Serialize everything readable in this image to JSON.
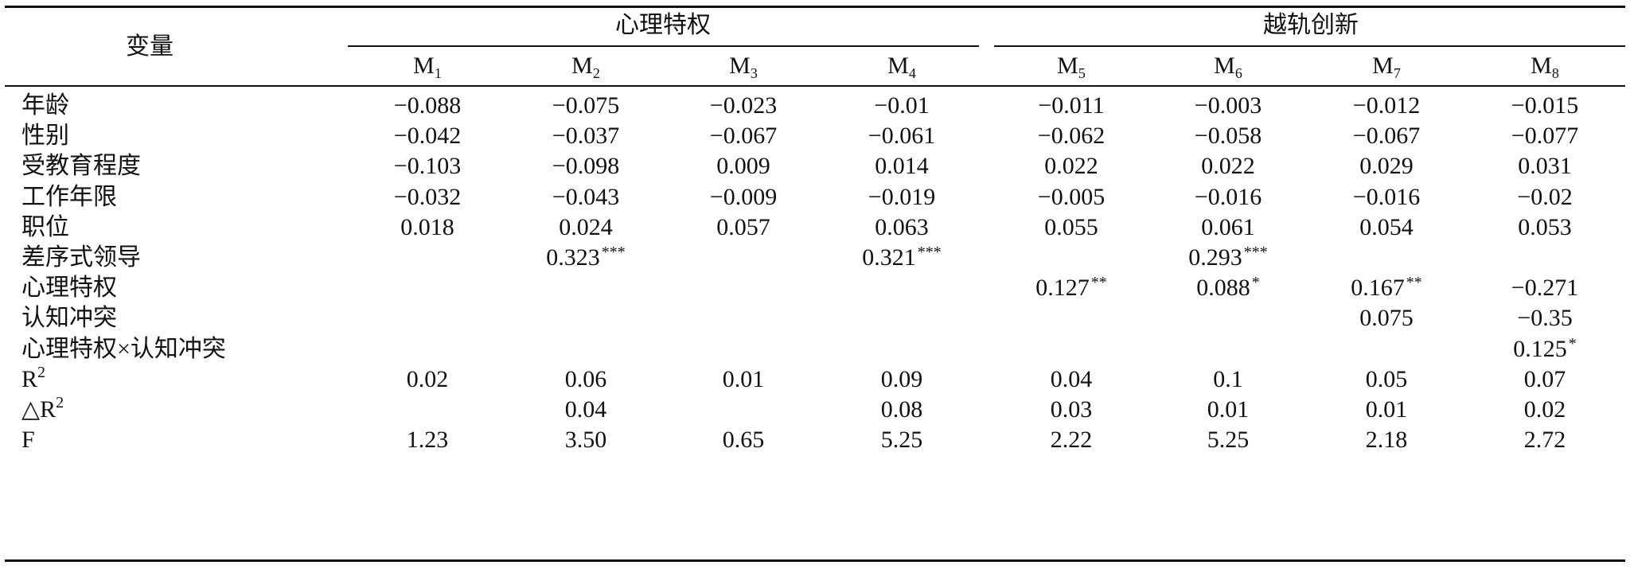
{
  "table": {
    "var_header": "变量",
    "groups": [
      "心理特权",
      "越轨创新"
    ],
    "models": [
      {
        "base": "M",
        "sub": "1"
      },
      {
        "base": "M",
        "sub": "2"
      },
      {
        "base": "M",
        "sub": "3"
      },
      {
        "base": "M",
        "sub": "4"
      },
      {
        "base": "M",
        "sub": "5"
      },
      {
        "base": "M",
        "sub": "6"
      },
      {
        "base": "M",
        "sub": "7"
      },
      {
        "base": "M",
        "sub": "8"
      }
    ],
    "rows": [
      {
        "label": "年龄",
        "label_sup": "",
        "cells": [
          {
            "v": "−0.088",
            "s": ""
          },
          {
            "v": "−0.075",
            "s": ""
          },
          {
            "v": "−0.023",
            "s": ""
          },
          {
            "v": "−0.01",
            "s": ""
          },
          {
            "v": "−0.011",
            "s": ""
          },
          {
            "v": "−0.003",
            "s": ""
          },
          {
            "v": "−0.012",
            "s": ""
          },
          {
            "v": "−0.015",
            "s": ""
          }
        ]
      },
      {
        "label": "性别",
        "label_sup": "",
        "cells": [
          {
            "v": "−0.042",
            "s": ""
          },
          {
            "v": "−0.037",
            "s": ""
          },
          {
            "v": "−0.067",
            "s": ""
          },
          {
            "v": "−0.061",
            "s": ""
          },
          {
            "v": "−0.062",
            "s": ""
          },
          {
            "v": "−0.058",
            "s": ""
          },
          {
            "v": "−0.067",
            "s": ""
          },
          {
            "v": "−0.077",
            "s": ""
          }
        ]
      },
      {
        "label": "受教育程度",
        "label_sup": "",
        "cells": [
          {
            "v": "−0.103",
            "s": ""
          },
          {
            "v": "−0.098",
            "s": ""
          },
          {
            "v": "0.009",
            "s": ""
          },
          {
            "v": "0.014",
            "s": ""
          },
          {
            "v": "0.022",
            "s": ""
          },
          {
            "v": "0.022",
            "s": ""
          },
          {
            "v": "0.029",
            "s": ""
          },
          {
            "v": "0.031",
            "s": ""
          }
        ]
      },
      {
        "label": "工作年限",
        "label_sup": "",
        "cells": [
          {
            "v": "−0.032",
            "s": ""
          },
          {
            "v": "−0.043",
            "s": ""
          },
          {
            "v": "−0.009",
            "s": ""
          },
          {
            "v": "−0.019",
            "s": ""
          },
          {
            "v": "−0.005",
            "s": ""
          },
          {
            "v": "−0.016",
            "s": ""
          },
          {
            "v": "−0.016",
            "s": ""
          },
          {
            "v": "−0.02",
            "s": ""
          }
        ]
      },
      {
        "label": "职位",
        "label_sup": "",
        "cells": [
          {
            "v": "0.018",
            "s": ""
          },
          {
            "v": "0.024",
            "s": ""
          },
          {
            "v": "0.057",
            "s": ""
          },
          {
            "v": "0.063",
            "s": ""
          },
          {
            "v": "0.055",
            "s": ""
          },
          {
            "v": "0.061",
            "s": ""
          },
          {
            "v": "0.054",
            "s": ""
          },
          {
            "v": "0.053",
            "s": ""
          }
        ]
      },
      {
        "label": "差序式领导",
        "label_sup": "",
        "cells": [
          {
            "v": "",
            "s": ""
          },
          {
            "v": "0.323",
            "s": "***"
          },
          {
            "v": "",
            "s": ""
          },
          {
            "v": "0.321",
            "s": "***"
          },
          {
            "v": "",
            "s": ""
          },
          {
            "v": "0.293",
            "s": "***"
          },
          {
            "v": "",
            "s": ""
          },
          {
            "v": "",
            "s": ""
          }
        ]
      },
      {
        "label": "心理特权",
        "label_sup": "",
        "cells": [
          {
            "v": "",
            "s": ""
          },
          {
            "v": "",
            "s": ""
          },
          {
            "v": "",
            "s": ""
          },
          {
            "v": "",
            "s": ""
          },
          {
            "v": "0.127",
            "s": "**"
          },
          {
            "v": "0.088",
            "s": "*"
          },
          {
            "v": "0.167",
            "s": "**"
          },
          {
            "v": "−0.271",
            "s": ""
          }
        ]
      },
      {
        "label": "认知冲突",
        "label_sup": "",
        "cells": [
          {
            "v": "",
            "s": ""
          },
          {
            "v": "",
            "s": ""
          },
          {
            "v": "",
            "s": ""
          },
          {
            "v": "",
            "s": ""
          },
          {
            "v": "",
            "s": ""
          },
          {
            "v": "",
            "s": ""
          },
          {
            "v": "0.075",
            "s": ""
          },
          {
            "v": "−0.35",
            "s": ""
          }
        ]
      },
      {
        "label": "心理特权×认知冲突",
        "label_sup": "",
        "cells": [
          {
            "v": "",
            "s": ""
          },
          {
            "v": "",
            "s": ""
          },
          {
            "v": "",
            "s": ""
          },
          {
            "v": "",
            "s": ""
          },
          {
            "v": "",
            "s": ""
          },
          {
            "v": "",
            "s": ""
          },
          {
            "v": "",
            "s": ""
          },
          {
            "v": "0.125",
            "s": "*"
          }
        ]
      },
      {
        "label": "R",
        "label_sup": "2",
        "cells": [
          {
            "v": "0.02",
            "s": ""
          },
          {
            "v": "0.06",
            "s": ""
          },
          {
            "v": "0.01",
            "s": ""
          },
          {
            "v": "0.09",
            "s": ""
          },
          {
            "v": "0.04",
            "s": ""
          },
          {
            "v": "0.1",
            "s": ""
          },
          {
            "v": "0.05",
            "s": ""
          },
          {
            "v": "0.07",
            "s": ""
          }
        ]
      },
      {
        "label": "△R",
        "label_sup": "2",
        "cells": [
          {
            "v": "",
            "s": ""
          },
          {
            "v": "0.04",
            "s": ""
          },
          {
            "v": "",
            "s": ""
          },
          {
            "v": "0.08",
            "s": ""
          },
          {
            "v": "0.03",
            "s": ""
          },
          {
            "v": "0.01",
            "s": ""
          },
          {
            "v": "0.01",
            "s": ""
          },
          {
            "v": "0.02",
            "s": ""
          }
        ]
      },
      {
        "label": "F",
        "label_sup": "",
        "cells": [
          {
            "v": "1.23",
            "s": ""
          },
          {
            "v": "3.50",
            "s": ""
          },
          {
            "v": "0.65",
            "s": ""
          },
          {
            "v": "5.25",
            "s": ""
          },
          {
            "v": "2.22",
            "s": ""
          },
          {
            "v": "5.25",
            "s": ""
          },
          {
            "v": "2.18",
            "s": ""
          },
          {
            "v": "2.72",
            "s": ""
          }
        ]
      }
    ]
  }
}
